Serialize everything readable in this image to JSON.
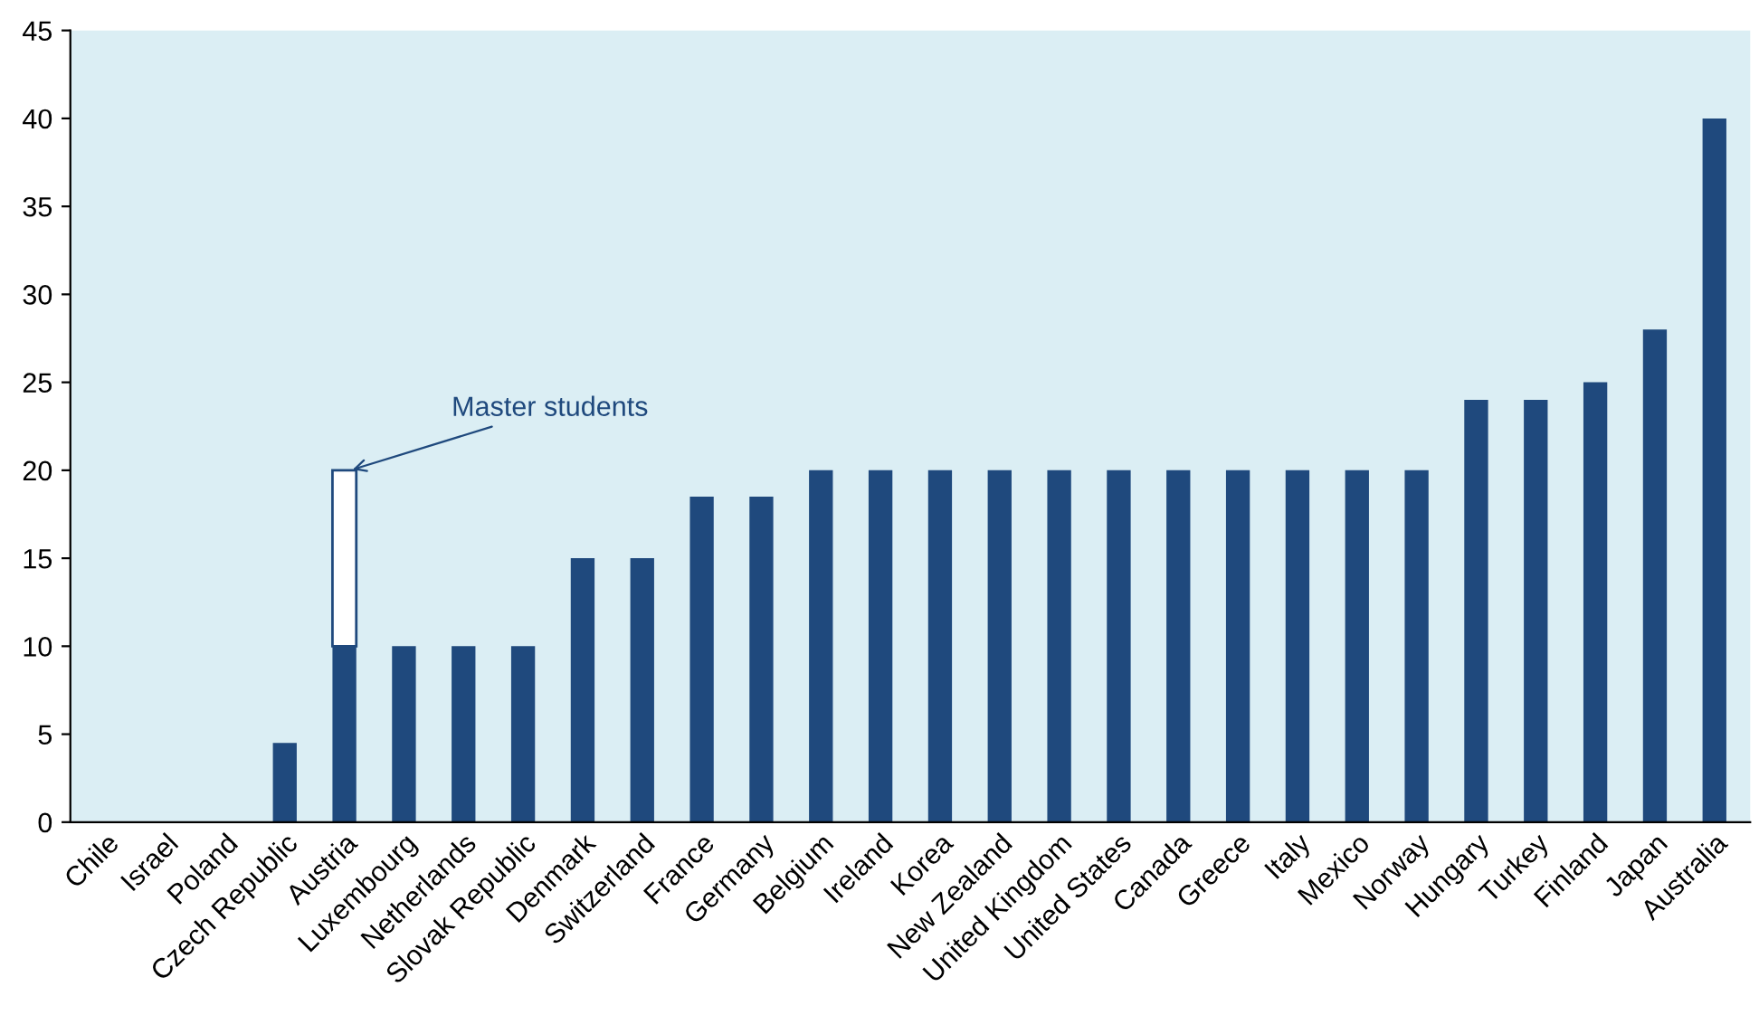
{
  "chart_data": {
    "type": "bar",
    "stacked": true,
    "categories": [
      "Chile",
      "Israel",
      "Poland",
      "Czech Republic",
      "Austria",
      "Luxembourg",
      "Netherlands",
      "Slovak Republic",
      "Denmark",
      "Switzerland",
      "France",
      "Germany",
      "Belgium",
      "Ireland",
      "Korea",
      "New Zealand",
      "United Kingdom",
      "United States",
      "Canada",
      "Greece",
      "Italy",
      "Mexico",
      "Norway",
      "Hungary",
      "Turkey",
      "Finland",
      "Japan",
      "Australia"
    ],
    "series": [
      {
        "color": "#1f497d",
        "values": [
          0,
          0,
          0,
          4.5,
          10,
          10,
          10,
          10,
          15,
          15,
          18.5,
          18.5,
          20,
          20,
          20,
          20,
          20,
          20,
          20,
          20,
          20,
          20,
          20,
          24,
          24,
          25,
          28,
          40
        ]
      },
      {
        "name": "Master students",
        "color": "#1f497d",
        "values": [
          null,
          null,
          null,
          null,
          10,
          null,
          null,
          null,
          null,
          null,
          null,
          null,
          null,
          null,
          null,
          null,
          null,
          null,
          null,
          null,
          null,
          null,
          null,
          null,
          null,
          null,
          null,
          null
        ]
      }
    ],
    "ylim": [
      0,
      45
    ],
    "yticks": [
      0,
      5,
      10,
      15,
      20,
      25,
      30,
      35,
      40,
      45
    ],
    "grid": false,
    "legend": false
  }
}
